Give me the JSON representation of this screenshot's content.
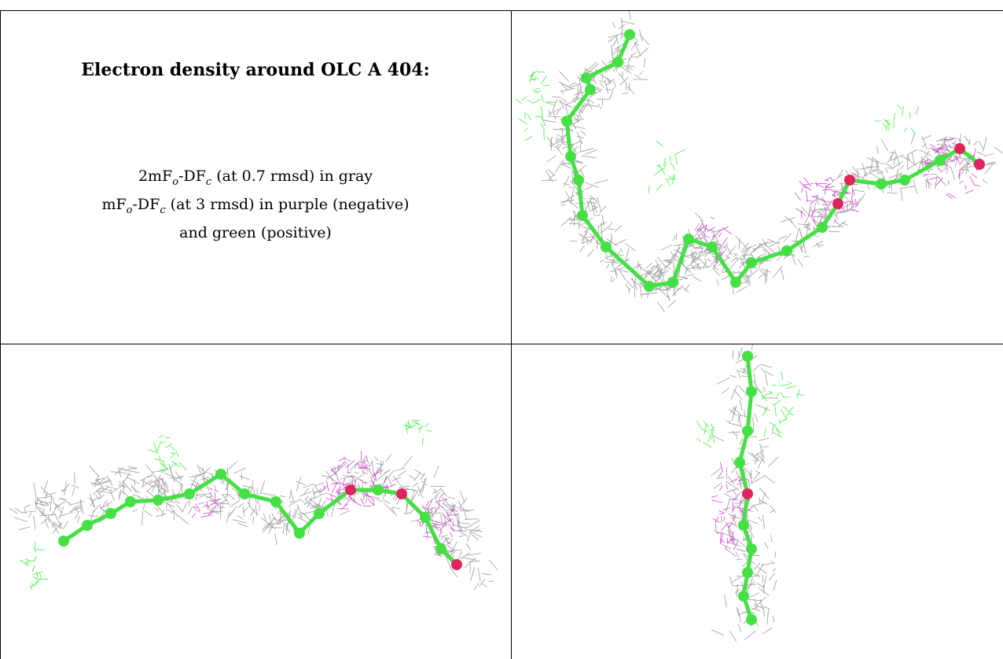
{
  "caption": {
    "title": "Electron density around OLC A 404:",
    "line1": {
      "pre": "2mF",
      "sub1": "o",
      "mid": "-DF",
      "sub2": "c",
      "post": " (at 0.7 rmsd) in gray"
    },
    "line2": {
      "pre": "mF",
      "sub1": "o",
      "mid": "-DF",
      "sub2": "c",
      "post": " (at 3 rmsd) in purple (negative)"
    },
    "line3": "and green (positive)"
  },
  "colors": {
    "map_2fofc": "#8a8a8a",
    "map_negative": "#cc33cc",
    "map_positive": "#33ee33",
    "carbon": "#44e044",
    "oxygen": "#e0245e"
  },
  "panels": [
    {
      "name": "top-right-view",
      "description": "ligand density view 1"
    },
    {
      "name": "bottom-left-view",
      "description": "ligand density view 2"
    },
    {
      "name": "bottom-right-view",
      "description": "ligand density view 3"
    }
  ]
}
